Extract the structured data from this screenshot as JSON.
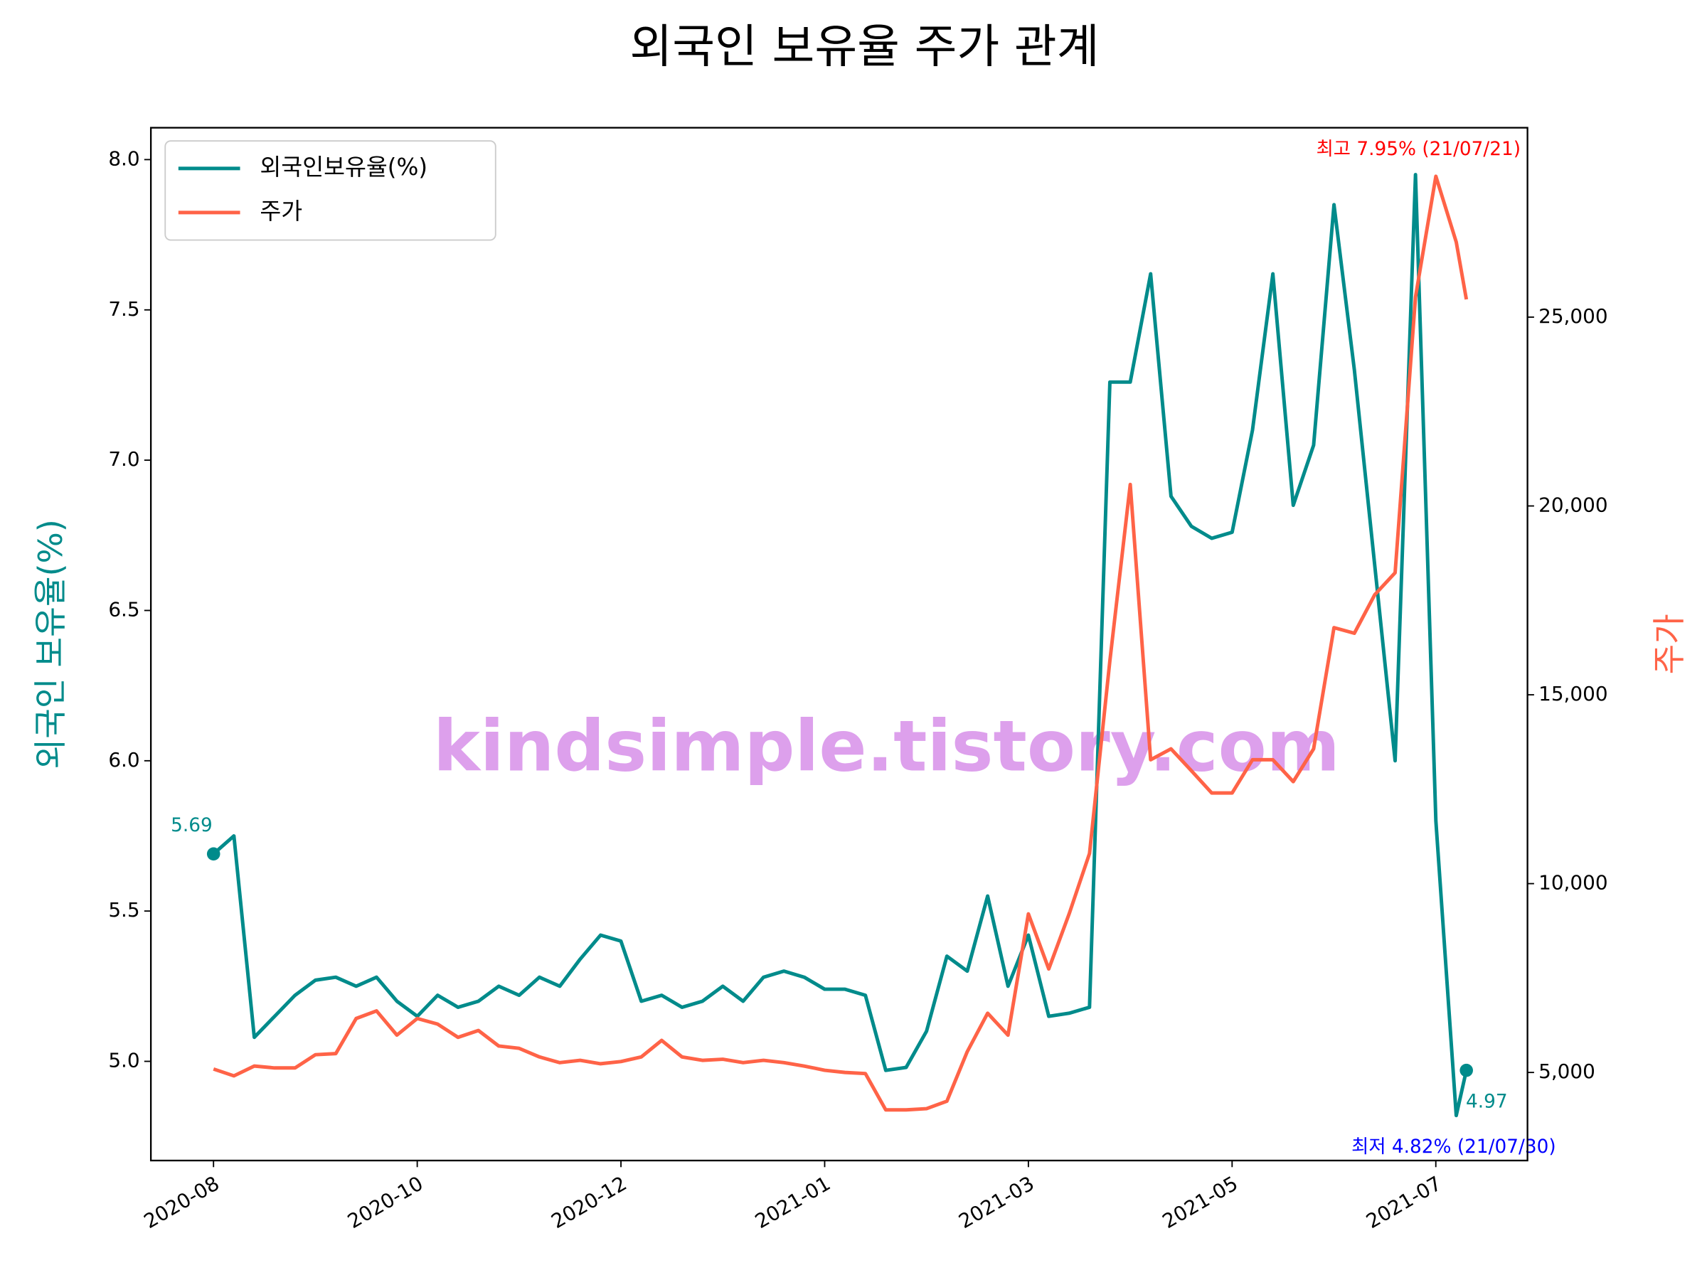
{
  "chart_data": {
    "type": "line",
    "title": "외국인 보유율 주가 관계",
    "ylabel": "외국인 보유율(%)",
    "y2label": "주가",
    "legend": "upper left",
    "x": [
      0,
      4,
      8,
      12,
      16,
      20,
      24,
      28,
      32,
      36,
      40,
      44,
      48,
      52,
      56,
      60,
      64,
      68,
      72,
      76,
      80,
      84,
      88,
      92,
      96,
      100,
      104,
      108,
      112,
      116,
      120,
      124,
      128,
      132,
      136,
      140,
      144,
      148,
      152,
      156,
      160,
      164,
      168,
      172,
      176,
      180,
      184,
      188,
      192,
      196,
      200,
      204,
      208,
      212,
      216,
      220,
      224,
      228,
      232,
      236,
      240,
      244,
      246
    ],
    "xlim": [
      -12.3,
      258
    ],
    "xticks": [
      {
        "value": 0,
        "label": "2020-08"
      },
      {
        "value": 40,
        "label": "2020-10"
      },
      {
        "value": 80,
        "label": "2020-12"
      },
      {
        "value": 120,
        "label": "2021-01"
      },
      {
        "value": 160,
        "label": "2021-03"
      },
      {
        "value": 200,
        "label": "2021-05"
      },
      {
        "value": 240,
        "label": "2021-07"
      }
    ],
    "ylim": [
      4.67,
      8.106
    ],
    "yticks": [
      {
        "value": 5,
        "label": "5.0"
      },
      {
        "value": 5.5,
        "label": "5.5"
      },
      {
        "value": 6,
        "label": "6.0"
      },
      {
        "value": 6.5,
        "label": "6.5"
      },
      {
        "value": 7,
        "label": "7.0"
      },
      {
        "value": 7.5,
        "label": "7.5"
      },
      {
        "value": 8,
        "label": "8.0"
      }
    ],
    "y2lim": [
      2668,
      30015
    ],
    "y2ticks": [
      {
        "value": 5000,
        "label": "5,000"
      },
      {
        "value": 10000,
        "label": "10,000"
      },
      {
        "value": 15000,
        "label": "15,000"
      },
      {
        "value": 20000,
        "label": "20,000"
      },
      {
        "value": 25000,
        "label": "25,000"
      }
    ],
    "series": [
      {
        "name": "외국인보유율(%)",
        "color": "#008b8b",
        "values": [
          5.69,
          5.75,
          5.08,
          5.15,
          5.22,
          5.27,
          5.28,
          5.25,
          5.28,
          5.2,
          5.15,
          5.22,
          5.18,
          5.2,
          5.25,
          5.22,
          5.28,
          5.25,
          5.34,
          5.42,
          5.4,
          5.2,
          5.22,
          5.18,
          5.2,
          5.25,
          5.2,
          5.28,
          5.3,
          5.28,
          5.24,
          5.24,
          5.22,
          4.97,
          4.98,
          5.1,
          5.35,
          5.3,
          5.55,
          5.25,
          5.42,
          5.15,
          5.16,
          5.18,
          7.26,
          7.26,
          7.62,
          6.88,
          6.78,
          6.74,
          6.76,
          7.1,
          7.62,
          6.85,
          7.05,
          7.85,
          7.3,
          6.65,
          6.0,
          7.95,
          5.8,
          4.82,
          4.97
        ]
      },
      {
        "name": "주가",
        "color": "#ff6347",
        "axis": "y2",
        "values": [
          5090,
          4910,
          5170,
          5120,
          5120,
          5470,
          5500,
          6430,
          6630,
          5990,
          6430,
          6280,
          5930,
          6110,
          5700,
          5640,
          5410,
          5260,
          5320,
          5230,
          5290,
          5410,
          5850,
          5410,
          5320,
          5350,
          5260,
          5320,
          5260,
          5170,
          5060,
          5000,
          4970,
          4010,
          4010,
          4040,
          4240,
          5550,
          6570,
          5990,
          9200,
          7740,
          9200,
          10800,
          15900,
          20570,
          13280,
          13570,
          12990,
          12400,
          12400,
          13280,
          13280,
          12700,
          13570,
          16780,
          16630,
          17650,
          18230,
          25530,
          28730,
          26990,
          25470
        ]
      }
    ],
    "annotations": [
      {
        "text": "5.69",
        "color": "#008b8b"
      },
      {
        "text": "4.97",
        "color": "#008b8b"
      },
      {
        "text": "최고 7.95% (21/07/21)",
        "color": "#ff0000"
      },
      {
        "text": "최저 4.82% (21/07/30)",
        "color": "#0000ff"
      },
      {
        "text": "kindsimple.tistory.com",
        "color": "#dda0ec"
      }
    ]
  }
}
